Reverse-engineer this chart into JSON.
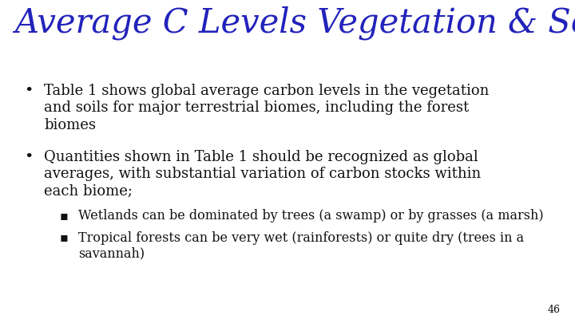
{
  "title": "Average C Levels Vegetation & Soils",
  "title_color": "#2222BB",
  "title_fontsize": 30,
  "background_color": "#FFFFFF",
  "bullet1_line1": "Table 1 shows global average carbon levels in the vegetation",
  "bullet1_line2": "and soils for major terrestrial biomes, including the forest",
  "bullet1_line3": "biomes",
  "bullet2_line1": "Quantities shown in Table 1 should be recognized as global",
  "bullet2_line2": "averages, with substantial variation of carbon stocks within",
  "bullet2_line3": "each biome;",
  "sub1": "Wetlands can be dominated by trees (a swamp) or by grasses (a marsh)",
  "sub2_line1": "Tropical forests can be very wet (rainforests) or quite dry (trees in a",
  "sub2_line2": "savannah)",
  "body_color": "#111111",
  "body_fontsize": 13.0,
  "sub_fontsize": 11.5,
  "page_number": "46",
  "page_fontsize": 9
}
